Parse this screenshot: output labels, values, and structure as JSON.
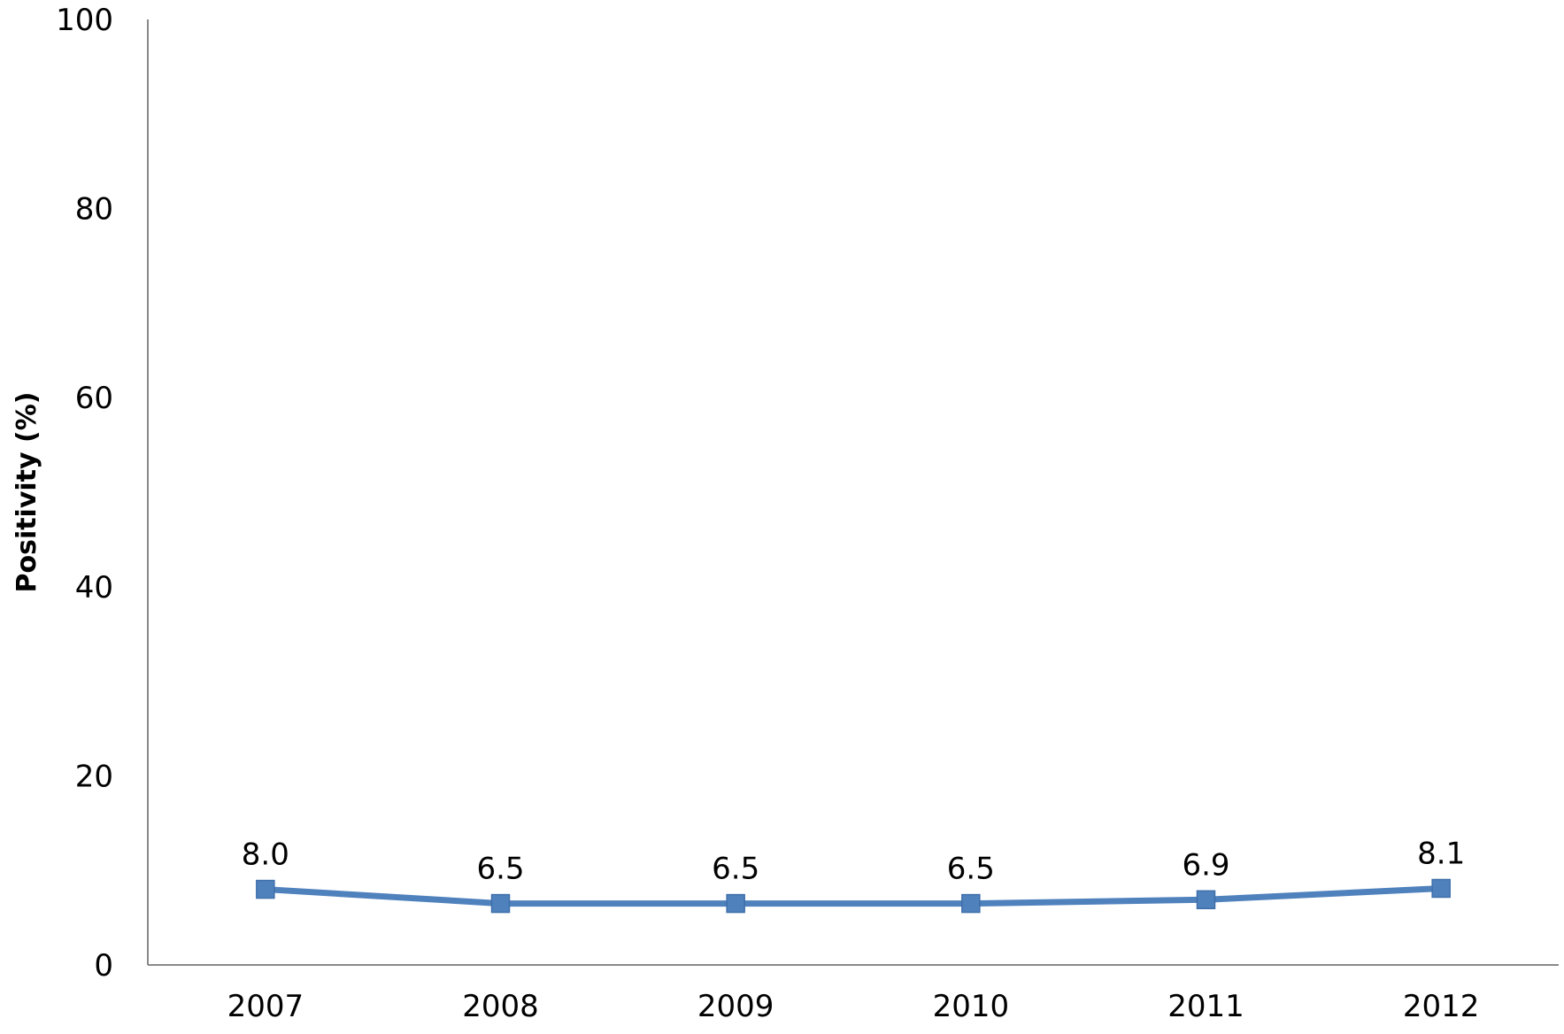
{
  "chart_data": {
    "type": "line",
    "title": "",
    "xlabel": "",
    "ylabel": "Positivity (%)",
    "categories": [
      "2007",
      "2008",
      "2009",
      "2010",
      "2011",
      "2012"
    ],
    "series": [
      {
        "values": [
          8.0,
          6.5,
          6.5,
          6.5,
          6.9,
          8.1
        ],
        "data_labels": [
          "8.0",
          "6.5",
          "6.5",
          "6.5",
          "6.9",
          "8.1"
        ],
        "color": "#4F81BD",
        "marker": "square"
      }
    ],
    "ylim": [
      0,
      100
    ],
    "yticks": [
      "0",
      "20",
      "40",
      "60",
      "80",
      "100"
    ],
    "grid": false,
    "legend": "none"
  }
}
